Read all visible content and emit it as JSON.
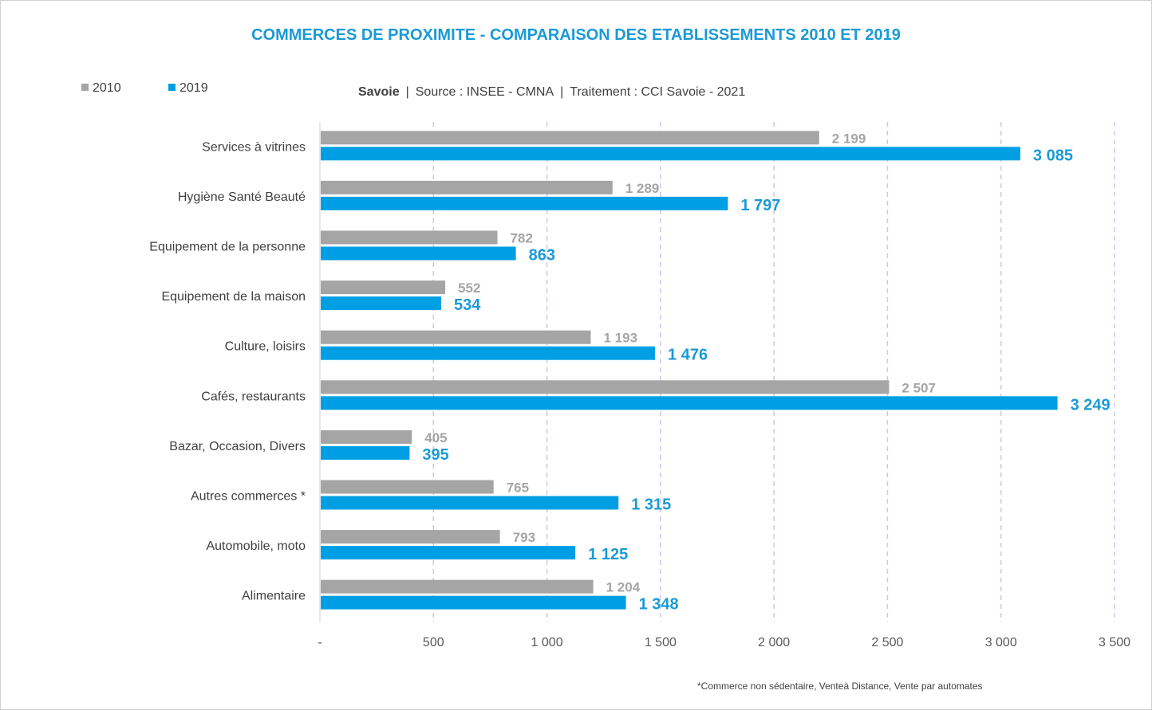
{
  "chart_data": {
    "type": "bar",
    "orientation": "horizontal",
    "title": "COMMERCES DE PROXIMITE - COMPARAISON DES ETABLISSEMENTS 2010 ET 2019",
    "subtitle": {
      "region": "Savoie",
      "source": "Source : INSEE - CMNA",
      "treatment": "Traitement : CCI Savoie - 2021",
      "separator": "|"
    },
    "footnote": "*Commerce non sédentaire, Venteà Distance, Vente par automates",
    "categories": [
      "Services à vitrines",
      "Hygiène Santé Beauté",
      "Equipement de la personne",
      "Equipement de la maison",
      "Culture, loisirs",
      "Cafés, restaurants",
      "Bazar, Occasion, Divers",
      "Autres commerces *",
      "Automobile, moto",
      "Alimentaire"
    ],
    "series": [
      {
        "name": "2010",
        "color": "#a5a5a5",
        "values": [
          2199,
          1289,
          782,
          552,
          1193,
          2507,
          405,
          765,
          793,
          1204
        ],
        "labels": [
          "2 199",
          "1 289",
          "782",
          "552",
          "1 193",
          "2 507",
          "405",
          "765",
          "793",
          "1 204"
        ]
      },
      {
        "name": "2019",
        "color": "#009fe3",
        "values": [
          3085,
          1797,
          863,
          534,
          1476,
          3249,
          395,
          1315,
          1125,
          1348
        ],
        "labels": [
          "3 085",
          "1 797",
          "863",
          "534",
          "1 476",
          "3 249",
          "395",
          "1 315",
          "1 125",
          "1 348"
        ]
      }
    ],
    "xlim": [
      0,
      3500
    ],
    "xticks": [
      0,
      500,
      1000,
      1500,
      2000,
      2500,
      3000,
      3500
    ],
    "xtick_labels": [
      "-",
      "500",
      "1 000",
      "1 500",
      "2 000",
      "2 500",
      "3 000",
      "3 500"
    ],
    "grid": "vertical dashed",
    "legend_position": "top-left"
  }
}
